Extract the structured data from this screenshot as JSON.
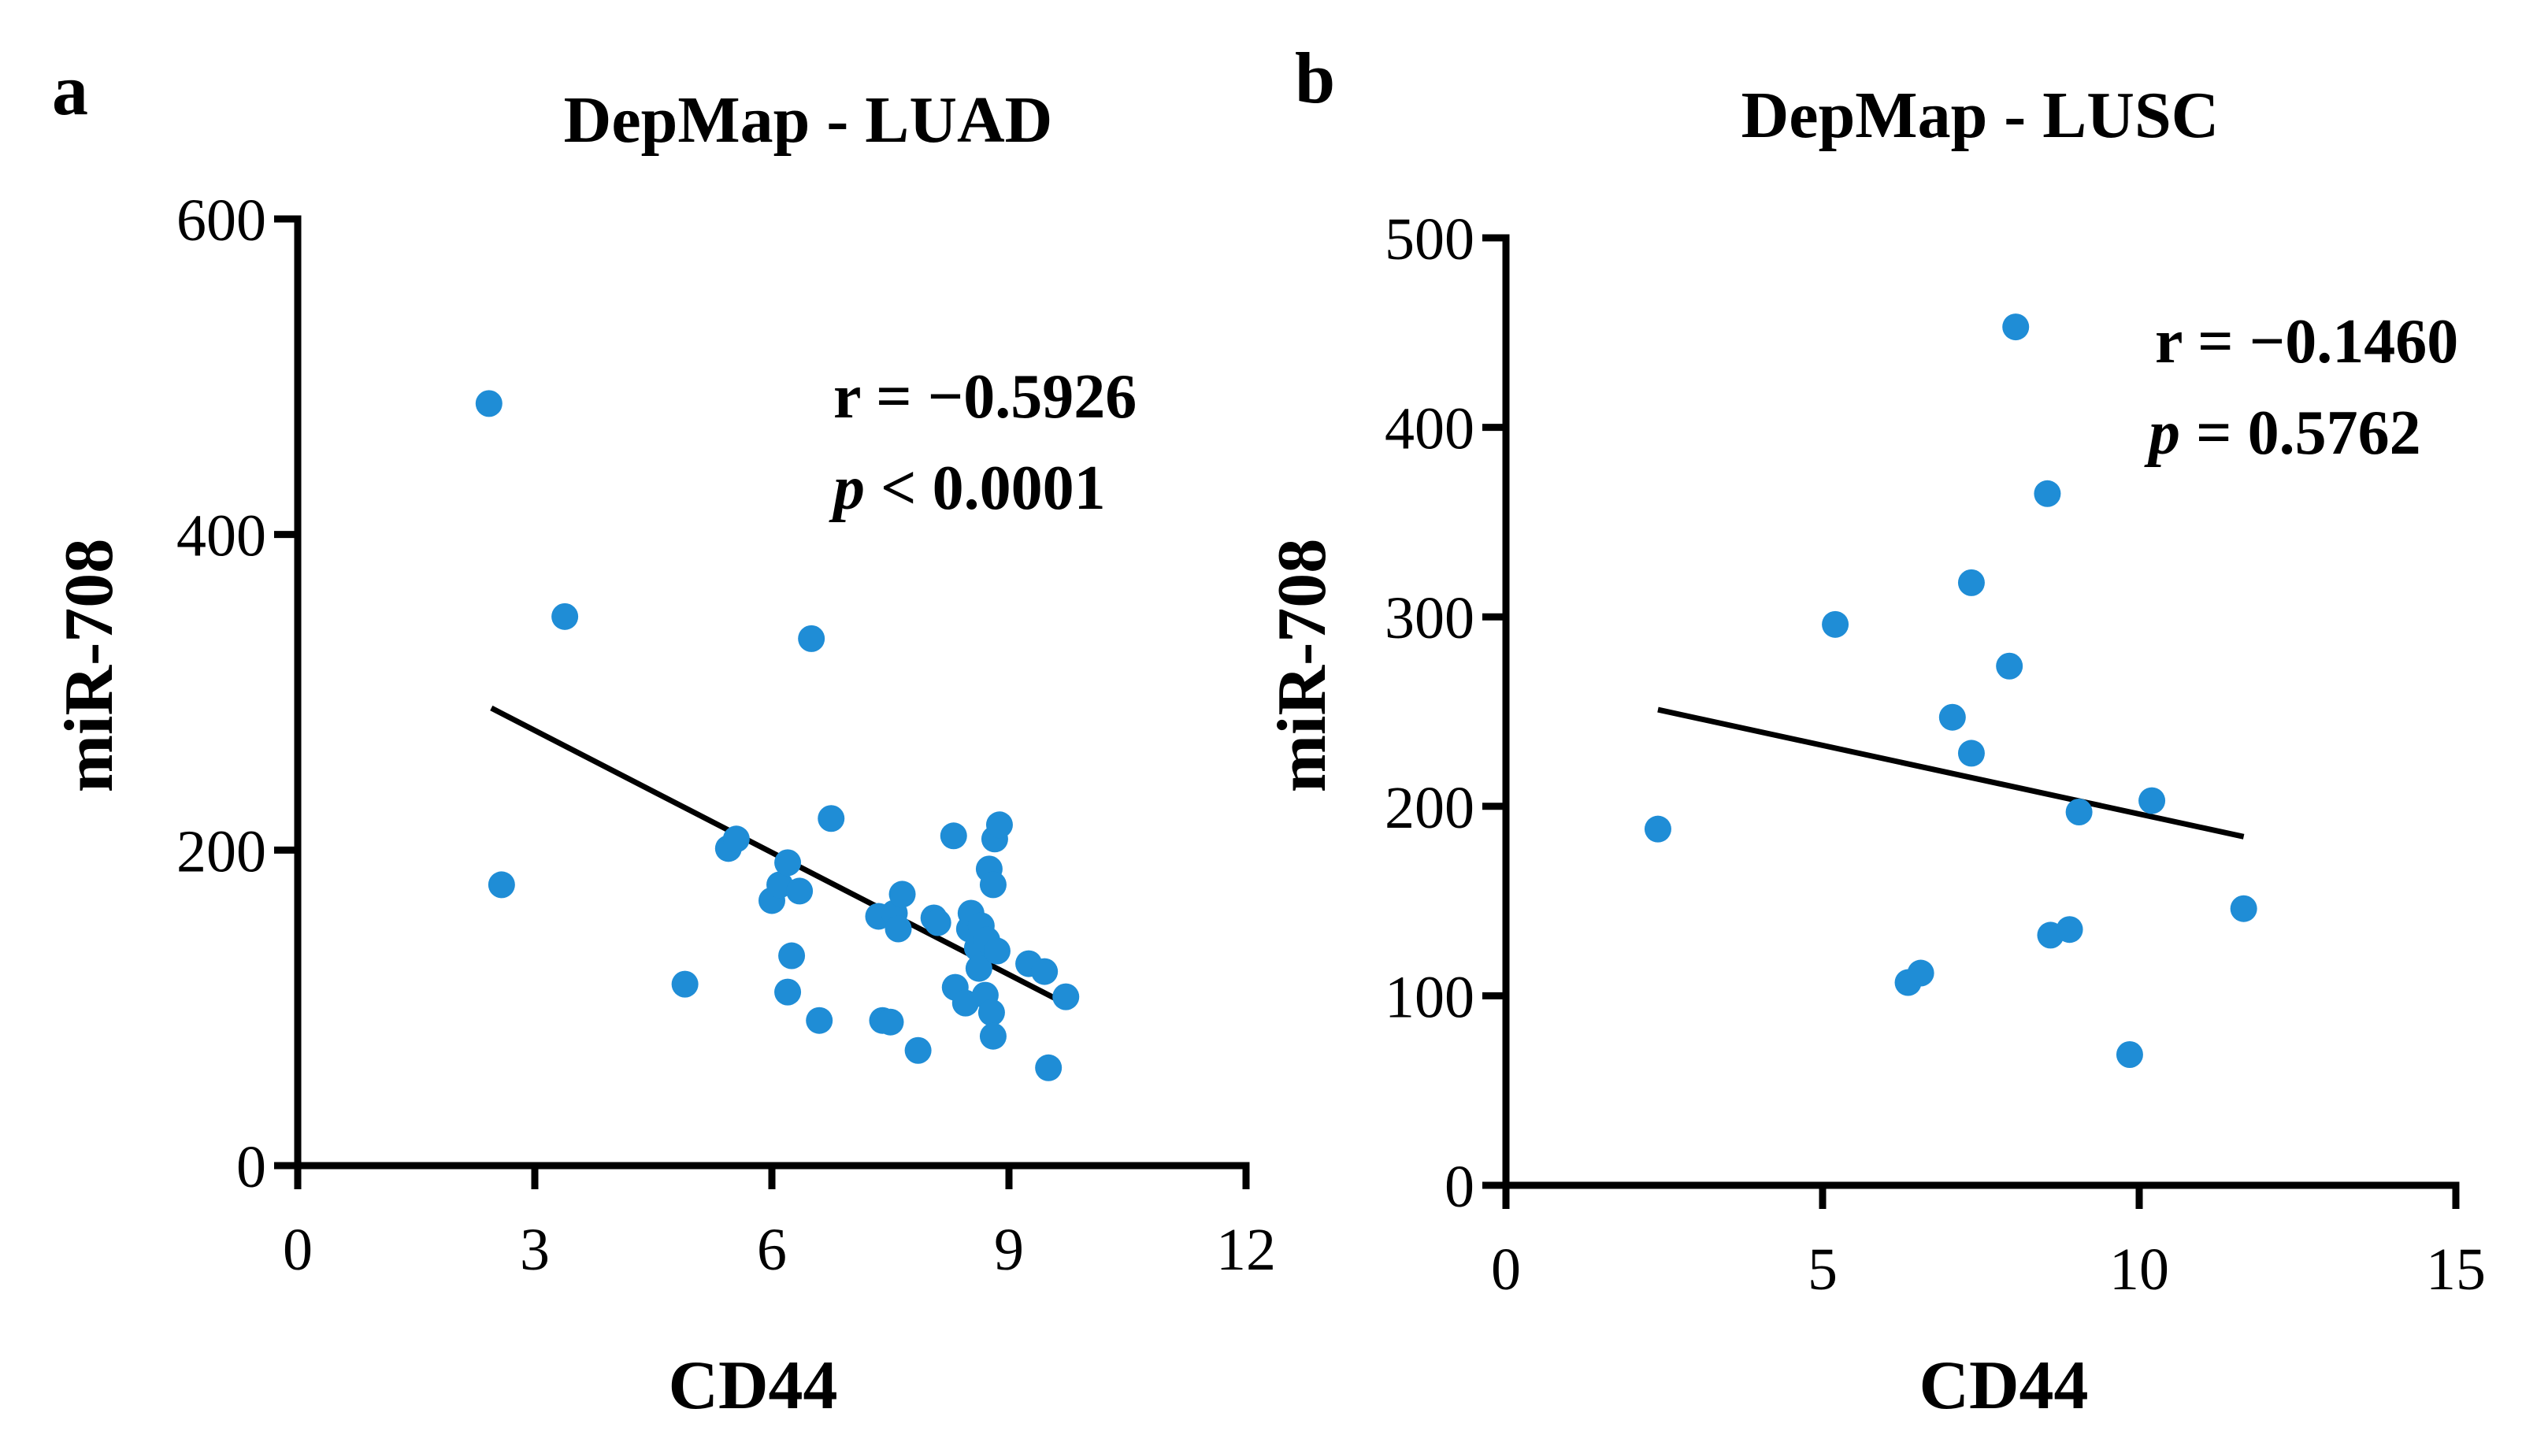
{
  "colors": {
    "point": "#1f8dd6",
    "axis": "#000000",
    "fit": "#000000"
  },
  "chart_data": [
    {
      "type": "scatter",
      "panel_label": "a",
      "title": "DepMap - LUAD",
      "xlabel": "CD44",
      "ylabel": "miR-708",
      "xlim": [
        0,
        12
      ],
      "ylim": [
        0,
        600
      ],
      "xticks": [
        0,
        3,
        6,
        9,
        12
      ],
      "yticks": [
        0,
        200,
        400,
        600
      ],
      "grid": false,
      "stats": {
        "r": "r = −0.5926",
        "p_symbol": "p",
        "p_rest": " < 0.0001"
      },
      "fit_line": {
        "x": [
          2.45,
          9.7
        ],
        "y": [
          290,
          103
        ]
      },
      "points": [
        {
          "x": 2.42,
          "y": 483
        },
        {
          "x": 2.58,
          "y": 178
        },
        {
          "x": 3.38,
          "y": 348
        },
        {
          "x": 4.9,
          "y": 115
        },
        {
          "x": 5.45,
          "y": 201
        },
        {
          "x": 5.55,
          "y": 207
        },
        {
          "x": 6.0,
          "y": 168
        },
        {
          "x": 6.1,
          "y": 178
        },
        {
          "x": 6.2,
          "y": 192
        },
        {
          "x": 6.2,
          "y": 110
        },
        {
          "x": 6.25,
          "y": 133
        },
        {
          "x": 6.35,
          "y": 174
        },
        {
          "x": 6.5,
          "y": 334
        },
        {
          "x": 6.6,
          "y": 92
        },
        {
          "x": 6.75,
          "y": 220
        },
        {
          "x": 7.35,
          "y": 158
        },
        {
          "x": 7.4,
          "y": 92
        },
        {
          "x": 7.5,
          "y": 91
        },
        {
          "x": 7.55,
          "y": 160
        },
        {
          "x": 7.6,
          "y": 150
        },
        {
          "x": 7.65,
          "y": 172
        },
        {
          "x": 7.85,
          "y": 73
        },
        {
          "x": 8.05,
          "y": 157
        },
        {
          "x": 8.1,
          "y": 154
        },
        {
          "x": 8.3,
          "y": 209
        },
        {
          "x": 8.32,
          "y": 113
        },
        {
          "x": 8.45,
          "y": 103
        },
        {
          "x": 8.5,
          "y": 150
        },
        {
          "x": 8.52,
          "y": 160
        },
        {
          "x": 8.6,
          "y": 138
        },
        {
          "x": 8.62,
          "y": 125
        },
        {
          "x": 8.65,
          "y": 152
        },
        {
          "x": 8.7,
          "y": 108
        },
        {
          "x": 8.72,
          "y": 143
        },
        {
          "x": 8.75,
          "y": 188
        },
        {
          "x": 8.78,
          "y": 97
        },
        {
          "x": 8.8,
          "y": 178
        },
        {
          "x": 8.8,
          "y": 82
        },
        {
          "x": 8.82,
          "y": 207
        },
        {
          "x": 8.85,
          "y": 136
        },
        {
          "x": 8.88,
          "y": 216
        },
        {
          "x": 9.25,
          "y": 128
        },
        {
          "x": 9.45,
          "y": 123
        },
        {
          "x": 9.5,
          "y": 62
        },
        {
          "x": 9.72,
          "y": 107
        }
      ]
    },
    {
      "type": "scatter",
      "panel_label": "b",
      "title": "DepMap - LUSC",
      "xlabel": "CD44",
      "ylabel": "miR-708",
      "xlim": [
        0,
        15
      ],
      "ylim": [
        0,
        500
      ],
      "xticks": [
        0,
        5,
        10,
        15
      ],
      "yticks": [
        0,
        100,
        200,
        300,
        400,
        500
      ],
      "grid": false,
      "stats": {
        "r": "r = −0.1460",
        "p_symbol": "p",
        "p_rest": " = 0.5762"
      },
      "fit_line": {
        "x": [
          2.4,
          11.65
        ],
        "y": [
          251,
          184
        ]
      },
      "points": [
        {
          "x": 2.4,
          "y": 188
        },
        {
          "x": 5.2,
          "y": 296
        },
        {
          "x": 6.35,
          "y": 107
        },
        {
          "x": 6.55,
          "y": 112
        },
        {
          "x": 7.05,
          "y": 247
        },
        {
          "x": 7.35,
          "y": 318
        },
        {
          "x": 7.35,
          "y": 228
        },
        {
          "x": 7.95,
          "y": 274
        },
        {
          "x": 8.05,
          "y": 453
        },
        {
          "x": 8.55,
          "y": 365
        },
        {
          "x": 8.6,
          "y": 132
        },
        {
          "x": 8.9,
          "y": 135
        },
        {
          "x": 9.05,
          "y": 197
        },
        {
          "x": 9.85,
          "y": 69
        },
        {
          "x": 10.2,
          "y": 203
        },
        {
          "x": 11.65,
          "y": 146
        }
      ]
    }
  ]
}
